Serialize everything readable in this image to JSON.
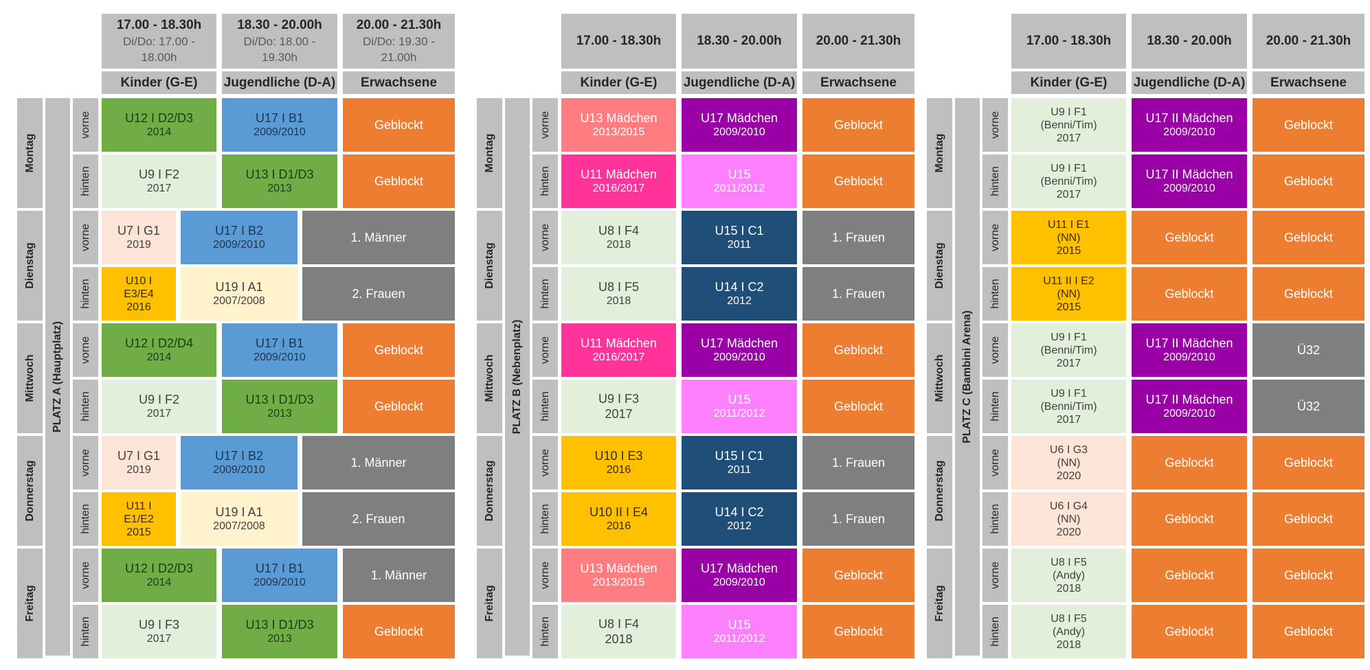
{
  "colors": {
    "green": "#70ad47",
    "blue": "#5b9bd5",
    "orange": "#ed7d31",
    "pale": "#e2efda",
    "gray": "#7f7f7f",
    "peach": "#fce4d6",
    "yellow": "#ffc000",
    "cream": "#fff2cc",
    "salmon": "#ff7c80",
    "purple": "#9900a6",
    "pink": "#ff3399",
    "light_pink": "#ff80ff",
    "navy": "#1f4e79",
    "header_gray": "#bfbfbf"
  },
  "categories": [
    "Kinder (G-E)",
    "Jugendliche (D-A)",
    "Erwachsene"
  ],
  "days": [
    "Montag",
    "Dienstag",
    "Mittwoch",
    "Donnerstag",
    "Freitag"
  ],
  "positions": [
    "vorne",
    "hinten"
  ],
  "fields": [
    {
      "name": "PLATZ A (Hauptplatz)",
      "times": [
        {
          "time": "17.00 - 18.30h",
          "sub": [
            "Di/Do: 17.00 -",
            "18.00h"
          ]
        },
        {
          "time": "18.30 - 20.00h",
          "sub": [
            "Di/Do: 18.00 -",
            "19.30h"
          ]
        },
        {
          "time": "20.00 - 21.30h",
          "sub": [
            "Di/Do: 19.30 -",
            "21.00h"
          ]
        }
      ],
      "days": [
        {
          "layout": "std",
          "rows": [
            [
              {
                "l": [
                  "U12 I D2/D3",
                  "2014"
                ],
                "c": "green"
              },
              {
                "l": [
                  "U17 I B1",
                  "2009/2010"
                ],
                "c": "blue"
              },
              {
                "l": [
                  "Geblockt"
                ],
                "c": "orange"
              }
            ],
            [
              {
                "l": [
                  "U9  I F2",
                  "2017"
                ],
                "c": "pale"
              },
              {
                "l": [
                  "U13 I D1/D3",
                  "2013"
                ],
                "c": "green"
              },
              {
                "l": [
                  "Geblockt"
                ],
                "c": "orange"
              }
            ]
          ]
        },
        {
          "layout": "shift",
          "rows": [
            [
              {
                "l": [
                  "U7 I G1",
                  "2019"
                ],
                "c": "peach"
              },
              {
                "l": [
                  "U17 I B2",
                  "2009/2010"
                ],
                "c": "blue"
              },
              {
                "l": [
                  "1. Männer"
                ],
                "c": "gray"
              }
            ],
            [
              {
                "l": [
                  "U10 I",
                  "E3/E4",
                  "2016"
                ],
                "c": "yellow"
              },
              {
                "l": [
                  "U19 I A1",
                  "2007/2008"
                ],
                "c": "cream"
              },
              {
                "l": [
                  "2. Frauen"
                ],
                "c": "gray"
              }
            ]
          ]
        },
        {
          "layout": "std",
          "rows": [
            [
              {
                "l": [
                  "U12 I D2/D4",
                  "2014"
                ],
                "c": "green"
              },
              {
                "l": [
                  "U17 I B1",
                  "2009/2010"
                ],
                "c": "blue"
              },
              {
                "l": [
                  "Geblockt"
                ],
                "c": "orange"
              }
            ],
            [
              {
                "l": [
                  "U9  I F2",
                  "2017"
                ],
                "c": "pale"
              },
              {
                "l": [
                  "U13 I D1/D3",
                  "2013"
                ],
                "c": "green"
              },
              {
                "l": [
                  "Geblockt"
                ],
                "c": "orange"
              }
            ]
          ]
        },
        {
          "layout": "shift",
          "rows": [
            [
              {
                "l": [
                  "U7 I G1",
                  "2019"
                ],
                "c": "peach"
              },
              {
                "l": [
                  "U17 I B2",
                  "2009/2010"
                ],
                "c": "blue"
              },
              {
                "l": [
                  "1. Männer"
                ],
                "c": "gray"
              }
            ],
            [
              {
                "l": [
                  "U11 I",
                  "E1/E2",
                  "2015"
                ],
                "c": "yellow"
              },
              {
                "l": [
                  "U19 I A1",
                  "2007/2008"
                ],
                "c": "cream"
              },
              {
                "l": [
                  "2. Frauen"
                ],
                "c": "gray"
              }
            ]
          ]
        },
        {
          "layout": "std",
          "rows": [
            [
              {
                "l": [
                  "U12 I D2/D3",
                  "2014"
                ],
                "c": "green"
              },
              {
                "l": [
                  "U17 I B1",
                  "2009/2010"
                ],
                "c": "blue"
              },
              {
                "l": [
                  "1. Männer"
                ],
                "c": "gray"
              }
            ],
            [
              {
                "l": [
                  "U9  I F3",
                  "2017"
                ],
                "c": "pale"
              },
              {
                "l": [
                  "U13 I D1/D3",
                  "2013"
                ],
                "c": "green"
              },
              {
                "l": [
                  "Geblockt"
                ],
                "c": "orange"
              }
            ]
          ]
        }
      ]
    },
    {
      "name": "PLATZ B (Nebenplatz)",
      "times": [
        {
          "time": "17.00 - 18.30h",
          "sub": []
        },
        {
          "time": "18.30 - 20.00h",
          "sub": []
        },
        {
          "time": "20.00 - 21.30h",
          "sub": []
        }
      ],
      "days": [
        {
          "layout": "std",
          "rows": [
            [
              {
                "l": [
                  "U13 Mädchen",
                  "2013/2015"
                ],
                "c": "salmon"
              },
              {
                "l": [
                  "U17 Mädchen",
                  "2009/2010"
                ],
                "c": "purple"
              },
              {
                "l": [
                  "Geblockt"
                ],
                "c": "orange"
              }
            ],
            [
              {
                "l": [
                  "U11 Mädchen",
                  "2016/2017"
                ],
                "c": "pink"
              },
              {
                "l": [
                  "U15",
                  "2011/2012"
                ],
                "c": "light_pink"
              },
              {
                "l": [
                  "Geblockt"
                ],
                "c": "orange"
              }
            ]
          ]
        },
        {
          "layout": "std",
          "rows": [
            [
              {
                "l": [
                  "U8 I F4",
                  "2018"
                ],
                "c": "pale"
              },
              {
                "l": [
                  "U15 I C1",
                  "2011"
                ],
                "c": "navy"
              },
              {
                "l": [
                  "1. Frauen"
                ],
                "c": "gray"
              }
            ],
            [
              {
                "l": [
                  "U8 I F5",
                  "2018"
                ],
                "c": "pale"
              },
              {
                "l": [
                  "U14 I C2",
                  "2012"
                ],
                "c": "navy"
              },
              {
                "l": [
                  "1. Frauen"
                ],
                "c": "gray"
              }
            ]
          ]
        },
        {
          "layout": "std",
          "rows": [
            [
              {
                "l": [
                  "U11 Mädchen",
                  "2016/2017"
                ],
                "c": "pink"
              },
              {
                "l": [
                  "U17 Mädchen",
                  "2009/2010"
                ],
                "c": "purple"
              },
              {
                "l": [
                  "Geblockt"
                ],
                "c": "orange"
              }
            ],
            [
              {
                "l": [
                  "U9  I F3",
                  "2017"
                ],
                "c": "pale",
                "big": true
              },
              {
                "l": [
                  "U15",
                  "2011/2012"
                ],
                "c": "light_pink"
              },
              {
                "l": [
                  "Geblockt"
                ],
                "c": "orange"
              }
            ]
          ]
        },
        {
          "layout": "std",
          "rows": [
            [
              {
                "l": [
                  "U10 I E3",
                  "2016"
                ],
                "c": "yellow"
              },
              {
                "l": [
                  "U15 I C1",
                  "2011"
                ],
                "c": "navy"
              },
              {
                "l": [
                  "1. Frauen"
                ],
                "c": "gray"
              }
            ],
            [
              {
                "l": [
                  "U10 II I E4",
                  "2016"
                ],
                "c": "yellow"
              },
              {
                "l": [
                  "U14 I C2",
                  "2012"
                ],
                "c": "navy"
              },
              {
                "l": [
                  "1. Frauen"
                ],
                "c": "gray"
              }
            ]
          ]
        },
        {
          "layout": "std",
          "rows": [
            [
              {
                "l": [
                  "U13 Mädchen",
                  "2013/2015"
                ],
                "c": "salmon"
              },
              {
                "l": [
                  "U17 Mädchen",
                  "2009/2010"
                ],
                "c": "purple"
              },
              {
                "l": [
                  "Geblockt"
                ],
                "c": "orange"
              }
            ],
            [
              {
                "l": [
                  "U8 I F4",
                  "2018"
                ],
                "c": "pale",
                "big": true
              },
              {
                "l": [
                  "U15",
                  "2011/2012"
                ],
                "c": "light_pink"
              },
              {
                "l": [
                  "Geblockt"
                ],
                "c": "orange"
              }
            ]
          ]
        }
      ]
    },
    {
      "name": "PLATZ C (Bambini Arena)",
      "times": [
        {
          "time": "17.00 - 18.30h",
          "sub": []
        },
        {
          "time": "18.30 - 20.00h",
          "sub": []
        },
        {
          "time": "20.00 - 21.30h",
          "sub": []
        }
      ],
      "days": [
        {
          "layout": "std",
          "rows": [
            [
              {
                "l": [
                  "U9 I F1",
                  "(Benni/Tim)",
                  "2017"
                ],
                "c": "pale"
              },
              {
                "l": [
                  "U17 II Mädchen",
                  "2009/2010"
                ],
                "c": "purple"
              },
              {
                "l": [
                  "Geblockt"
                ],
                "c": "orange"
              }
            ],
            [
              {
                "l": [
                  "U9 I F1",
                  "(Benni/Tim)",
                  "2017"
                ],
                "c": "pale"
              },
              {
                "l": [
                  "U17 II Mädchen",
                  "2009/2010"
                ],
                "c": "purple"
              },
              {
                "l": [
                  "Geblockt"
                ],
                "c": "orange"
              }
            ]
          ]
        },
        {
          "layout": "std",
          "rows": [
            [
              {
                "l": [
                  "U11 I E1",
                  "(NN)",
                  "2015"
                ],
                "c": "yellow"
              },
              {
                "l": [
                  "Geblockt"
                ],
                "c": "orange"
              },
              {
                "l": [
                  "Geblockt"
                ],
                "c": "orange"
              }
            ],
            [
              {
                "l": [
                  "U11 II I E2",
                  "(NN)",
                  "2015"
                ],
                "c": "yellow"
              },
              {
                "l": [
                  "Geblockt"
                ],
                "c": "orange"
              },
              {
                "l": [
                  "Geblockt"
                ],
                "c": "orange"
              }
            ]
          ]
        },
        {
          "layout": "std",
          "rows": [
            [
              {
                "l": [
                  "U9 I F1",
                  "(Benni/Tim)",
                  "2017"
                ],
                "c": "pale"
              },
              {
                "l": [
                  "U17 II Mädchen",
                  "2009/2010"
                ],
                "c": "purple"
              },
              {
                "l": [
                  "Ü32"
                ],
                "c": "gray"
              }
            ],
            [
              {
                "l": [
                  "U9 I F1",
                  "(Benni/Tim)",
                  "2017"
                ],
                "c": "pale"
              },
              {
                "l": [
                  "U17 II Mädchen",
                  "2009/2010"
                ],
                "c": "purple"
              },
              {
                "l": [
                  "Ü32"
                ],
                "c": "gray"
              }
            ]
          ]
        },
        {
          "layout": "std",
          "rows": [
            [
              {
                "l": [
                  "U6 I G3",
                  "(NN)",
                  "2020"
                ],
                "c": "peach"
              },
              {
                "l": [
                  "Geblockt"
                ],
                "c": "orange"
              },
              {
                "l": [
                  "Geblockt"
                ],
                "c": "orange"
              }
            ],
            [
              {
                "l": [
                  "U6 I G4",
                  "(NN)",
                  "2020"
                ],
                "c": "peach"
              },
              {
                "l": [
                  "Geblockt"
                ],
                "c": "orange"
              },
              {
                "l": [
                  "Geblockt"
                ],
                "c": "orange"
              }
            ]
          ]
        },
        {
          "layout": "std",
          "rows": [
            [
              {
                "l": [
                  "U8 I F5",
                  "(Andy)",
                  "2018"
                ],
                "c": "pale"
              },
              {
                "l": [
                  "Geblockt"
                ],
                "c": "orange"
              },
              {
                "l": [
                  "Geblockt"
                ],
                "c": "orange"
              }
            ],
            [
              {
                "l": [
                  "U8 I F5",
                  "(Andy)",
                  "2018"
                ],
                "c": "pale"
              },
              {
                "l": [
                  "Geblockt"
                ],
                "c": "orange"
              },
              {
                "l": [
                  "Geblockt"
                ],
                "c": "orange"
              }
            ]
          ]
        }
      ]
    }
  ]
}
